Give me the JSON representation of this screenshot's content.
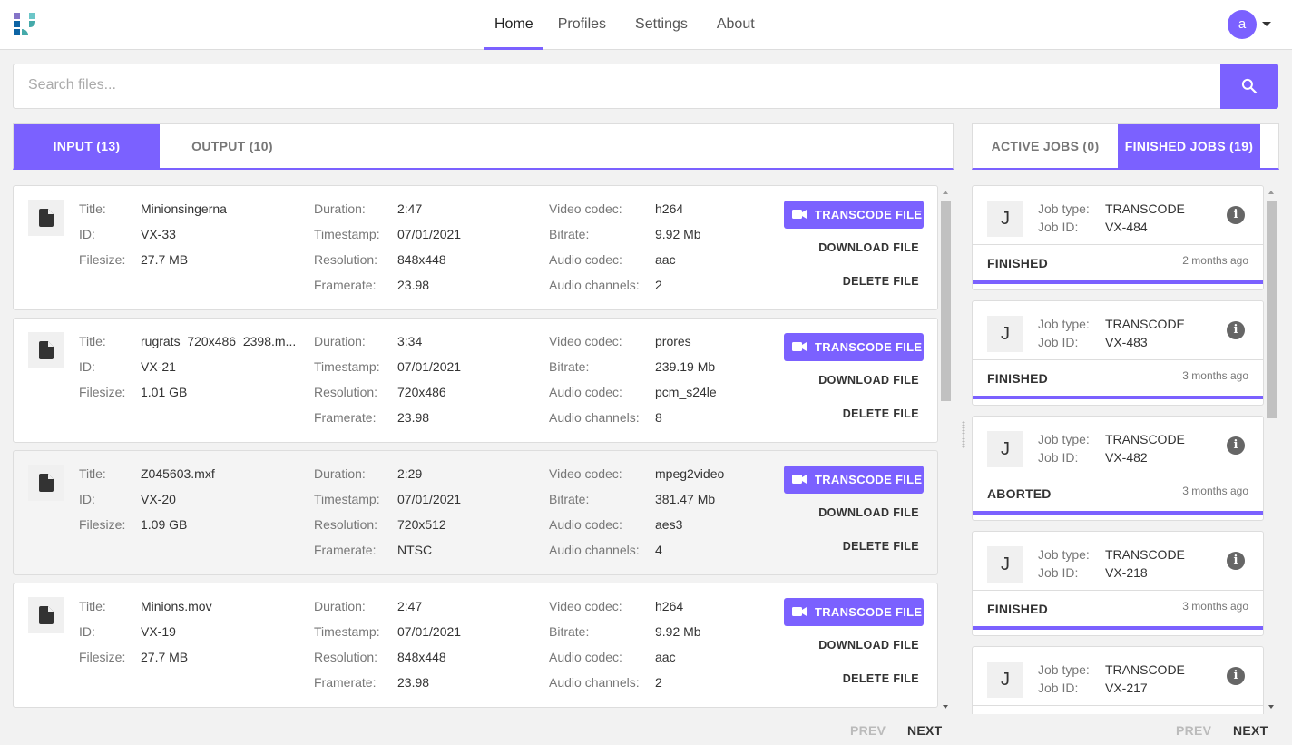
{
  "header": {
    "nav": [
      "Home",
      "Profiles",
      "Settings",
      "About"
    ],
    "active": "Home",
    "avatar": "a"
  },
  "search": {
    "placeholder": "Search files...",
    "value": ""
  },
  "colors": {
    "accent": "#7b61ff"
  },
  "left_tabs": [
    "INPUT (13)",
    "OUTPUT (10)"
  ],
  "right_tabs": [
    "ACTIVE JOBS (0)",
    "FINISHED JOBS (19)"
  ],
  "labels": {
    "title": "Title:",
    "id": "ID:",
    "filesize": "Filesize:",
    "duration": "Duration:",
    "timestamp": "Timestamp:",
    "resolution": "Resolution:",
    "framerate": "Framerate:",
    "video_codec": "Video codec:",
    "bitrate": "Bitrate:",
    "audio_codec": "Audio codec:",
    "audio_channels": "Audio channels:",
    "transcode": "TRANSCODE FILE",
    "download": "DOWNLOAD FILE",
    "delete": "DELETE FILE",
    "job_type": "Job type:",
    "job_id": "Job ID:"
  },
  "files": [
    {
      "title": "Minionsingerna",
      "id": "VX-33",
      "filesize": "27.7 MB",
      "duration": "2:47",
      "timestamp": "07/01/2021",
      "resolution": "848x448",
      "framerate": "23.98",
      "video_codec": "h264",
      "bitrate": "9.92 Mb",
      "audio_codec": "aac",
      "audio_channels": "2"
    },
    {
      "title": "rugrats_720x486_2398.m...",
      "id": "VX-21",
      "filesize": "1.01 GB",
      "duration": "3:34",
      "timestamp": "07/01/2021",
      "resolution": "720x486",
      "framerate": "23.98",
      "video_codec": "prores",
      "bitrate": "239.19 Mb",
      "audio_codec": "pcm_s24le",
      "audio_channels": "8"
    },
    {
      "title": "Z045603.mxf",
      "id": "VX-20",
      "filesize": "1.09 GB",
      "duration": "2:29",
      "timestamp": "07/01/2021",
      "resolution": "720x512",
      "framerate": "NTSC",
      "video_codec": "mpeg2video",
      "bitrate": "381.47 Mb",
      "audio_codec": "aes3",
      "audio_channels": "4"
    },
    {
      "title": "Minions.mov",
      "id": "VX-19",
      "filesize": "27.7 MB",
      "duration": "2:47",
      "timestamp": "07/01/2021",
      "resolution": "848x448",
      "framerate": "23.98",
      "video_codec": "h264",
      "bitrate": "9.92 Mb",
      "audio_codec": "aac",
      "audio_channels": "2"
    }
  ],
  "jobs": [
    {
      "avatar": "J",
      "type": "TRANSCODE",
      "id": "VX-484",
      "status": "FINISHED",
      "time": "2 months ago"
    },
    {
      "avatar": "J",
      "type": "TRANSCODE",
      "id": "VX-483",
      "status": "FINISHED",
      "time": "3 months ago"
    },
    {
      "avatar": "J",
      "type": "TRANSCODE",
      "id": "VX-482",
      "status": "ABORTED",
      "time": "3 months ago"
    },
    {
      "avatar": "J",
      "type": "TRANSCODE",
      "id": "VX-218",
      "status": "FINISHED",
      "time": "3 months ago"
    },
    {
      "avatar": "J",
      "type": "TRANSCODE",
      "id": "VX-217",
      "status": "",
      "time": ""
    }
  ],
  "pagination": {
    "prev": "PREV",
    "next": "NEXT"
  }
}
